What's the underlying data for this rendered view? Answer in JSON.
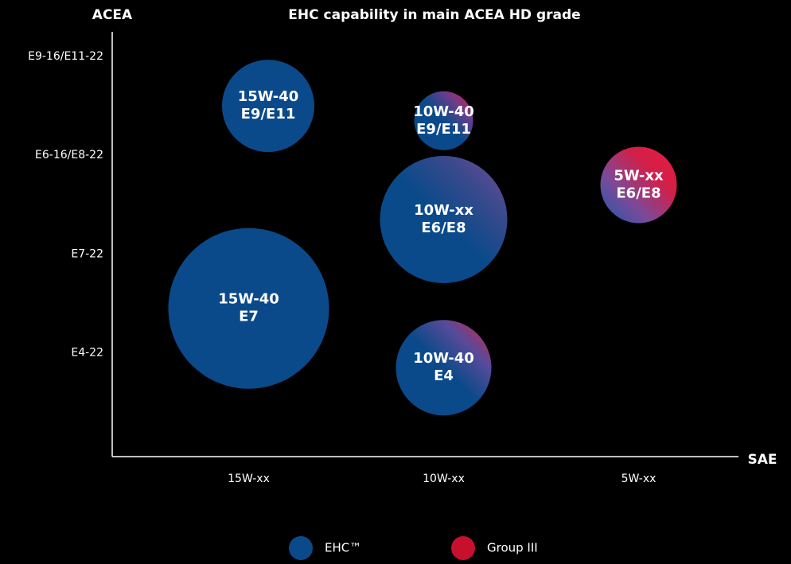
{
  "chart_data": {
    "type": "bubble",
    "title": "EHC capability in main ACEA HD grade",
    "y_label": "ACEA",
    "x_label": "SAE",
    "xlim": [
      0.3,
      3.5
    ],
    "xticks": [
      {
        "value": 1,
        "label": "15W-xx"
      },
      {
        "value": 2,
        "label": "10W-xx"
      },
      {
        "value": 3,
        "label": "5W-xx"
      }
    ],
    "ylim": [
      -0.05,
      4.25
    ],
    "yticks": [
      {
        "value": 1,
        "label": "E4-22"
      },
      {
        "value": 2,
        "label": "E7-22"
      },
      {
        "value": 3,
        "label": "E6-16/E8-22"
      },
      {
        "value": 4,
        "label": "E9-16/E11-22"
      }
    ],
    "bubbles": [
      {
        "label": [
          "15W-40",
          "E9/E11"
        ],
        "x": 1.1,
        "y": 3.5,
        "size": 58,
        "colors": [
          "#0b4a8a"
        ]
      },
      {
        "label": [
          "10W-40",
          "E9/E11"
        ],
        "x": 2,
        "y": 3.35,
        "size": 37,
        "colors": [
          "#0b4a8a",
          "#0b4a8a",
          "#0b4a8a",
          "#6a3d8c",
          "#e8173a"
        ]
      },
      {
        "label": [
          "10W-xx",
          "E6/E8"
        ],
        "x": 2,
        "y": 2.35,
        "size": 80,
        "colors": [
          "#0b4a8a",
          "#0b4a8a",
          "#0b4a8a",
          "#3a4a8c",
          "#7a4a9a"
        ]
      },
      {
        "label": [
          "5W-xx",
          "E6/E8"
        ],
        "x": 3,
        "y": 2.7,
        "size": 48,
        "colors": [
          "#1a5aa8",
          "#7a4a9a",
          "#d0204a",
          "#ee1a3a"
        ]
      },
      {
        "label": [
          "15W-40",
          "E7"
        ],
        "x": 1,
        "y": 1.45,
        "size": 101,
        "colors": [
          "#0b4a8a"
        ]
      },
      {
        "label": [
          "10W-40",
          "E4"
        ],
        "x": 2,
        "y": 0.85,
        "size": 60,
        "colors": [
          "#0b4a8a",
          "#0b4a8a",
          "#0b4a8a",
          "#5a4a9a",
          "#e0203a"
        ]
      }
    ],
    "legend": [
      {
        "name": "EHC™",
        "color": "#0b4a8a"
      },
      {
        "name": "Group III",
        "color": "#c8102e"
      }
    ],
    "legend_position": "bottom"
  }
}
